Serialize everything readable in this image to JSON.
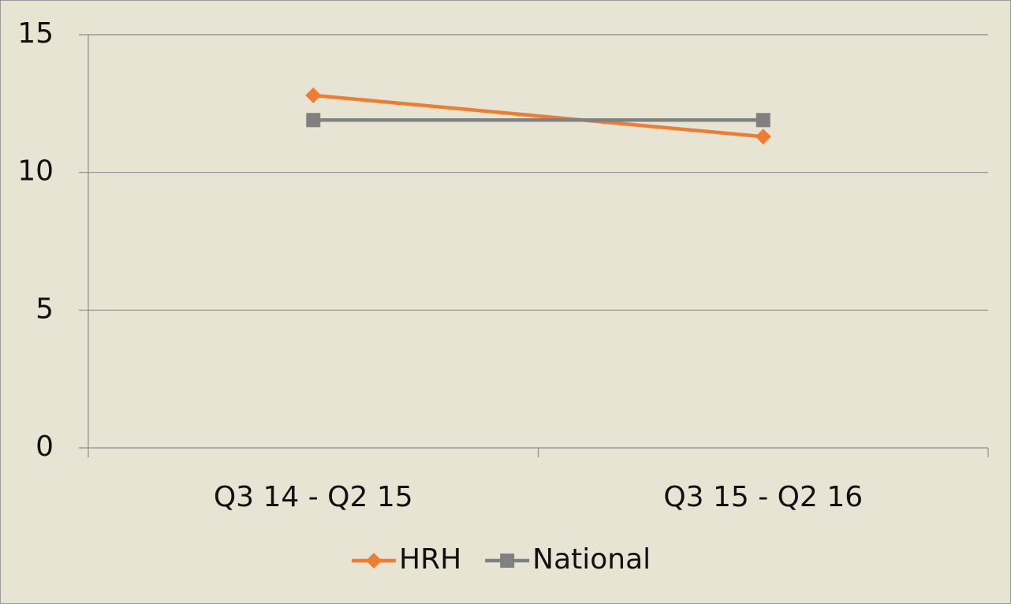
{
  "chart_data": {
    "type": "line",
    "categories": [
      "Q3 14 - Q2 15",
      "Q3 15 - Q2 16"
    ],
    "series": [
      {
        "name": "HRH",
        "color": "#ed7d31",
        "marker": "diamond",
        "values": [
          12.8,
          11.3
        ]
      },
      {
        "name": "National",
        "color": "#808080",
        "marker": "square",
        "values": [
          11.9,
          11.9
        ]
      }
    ],
    "ylim": [
      0,
      15
    ],
    "yticks": [
      0,
      5,
      10,
      15
    ],
    "grid": true,
    "legend": "bottom"
  }
}
